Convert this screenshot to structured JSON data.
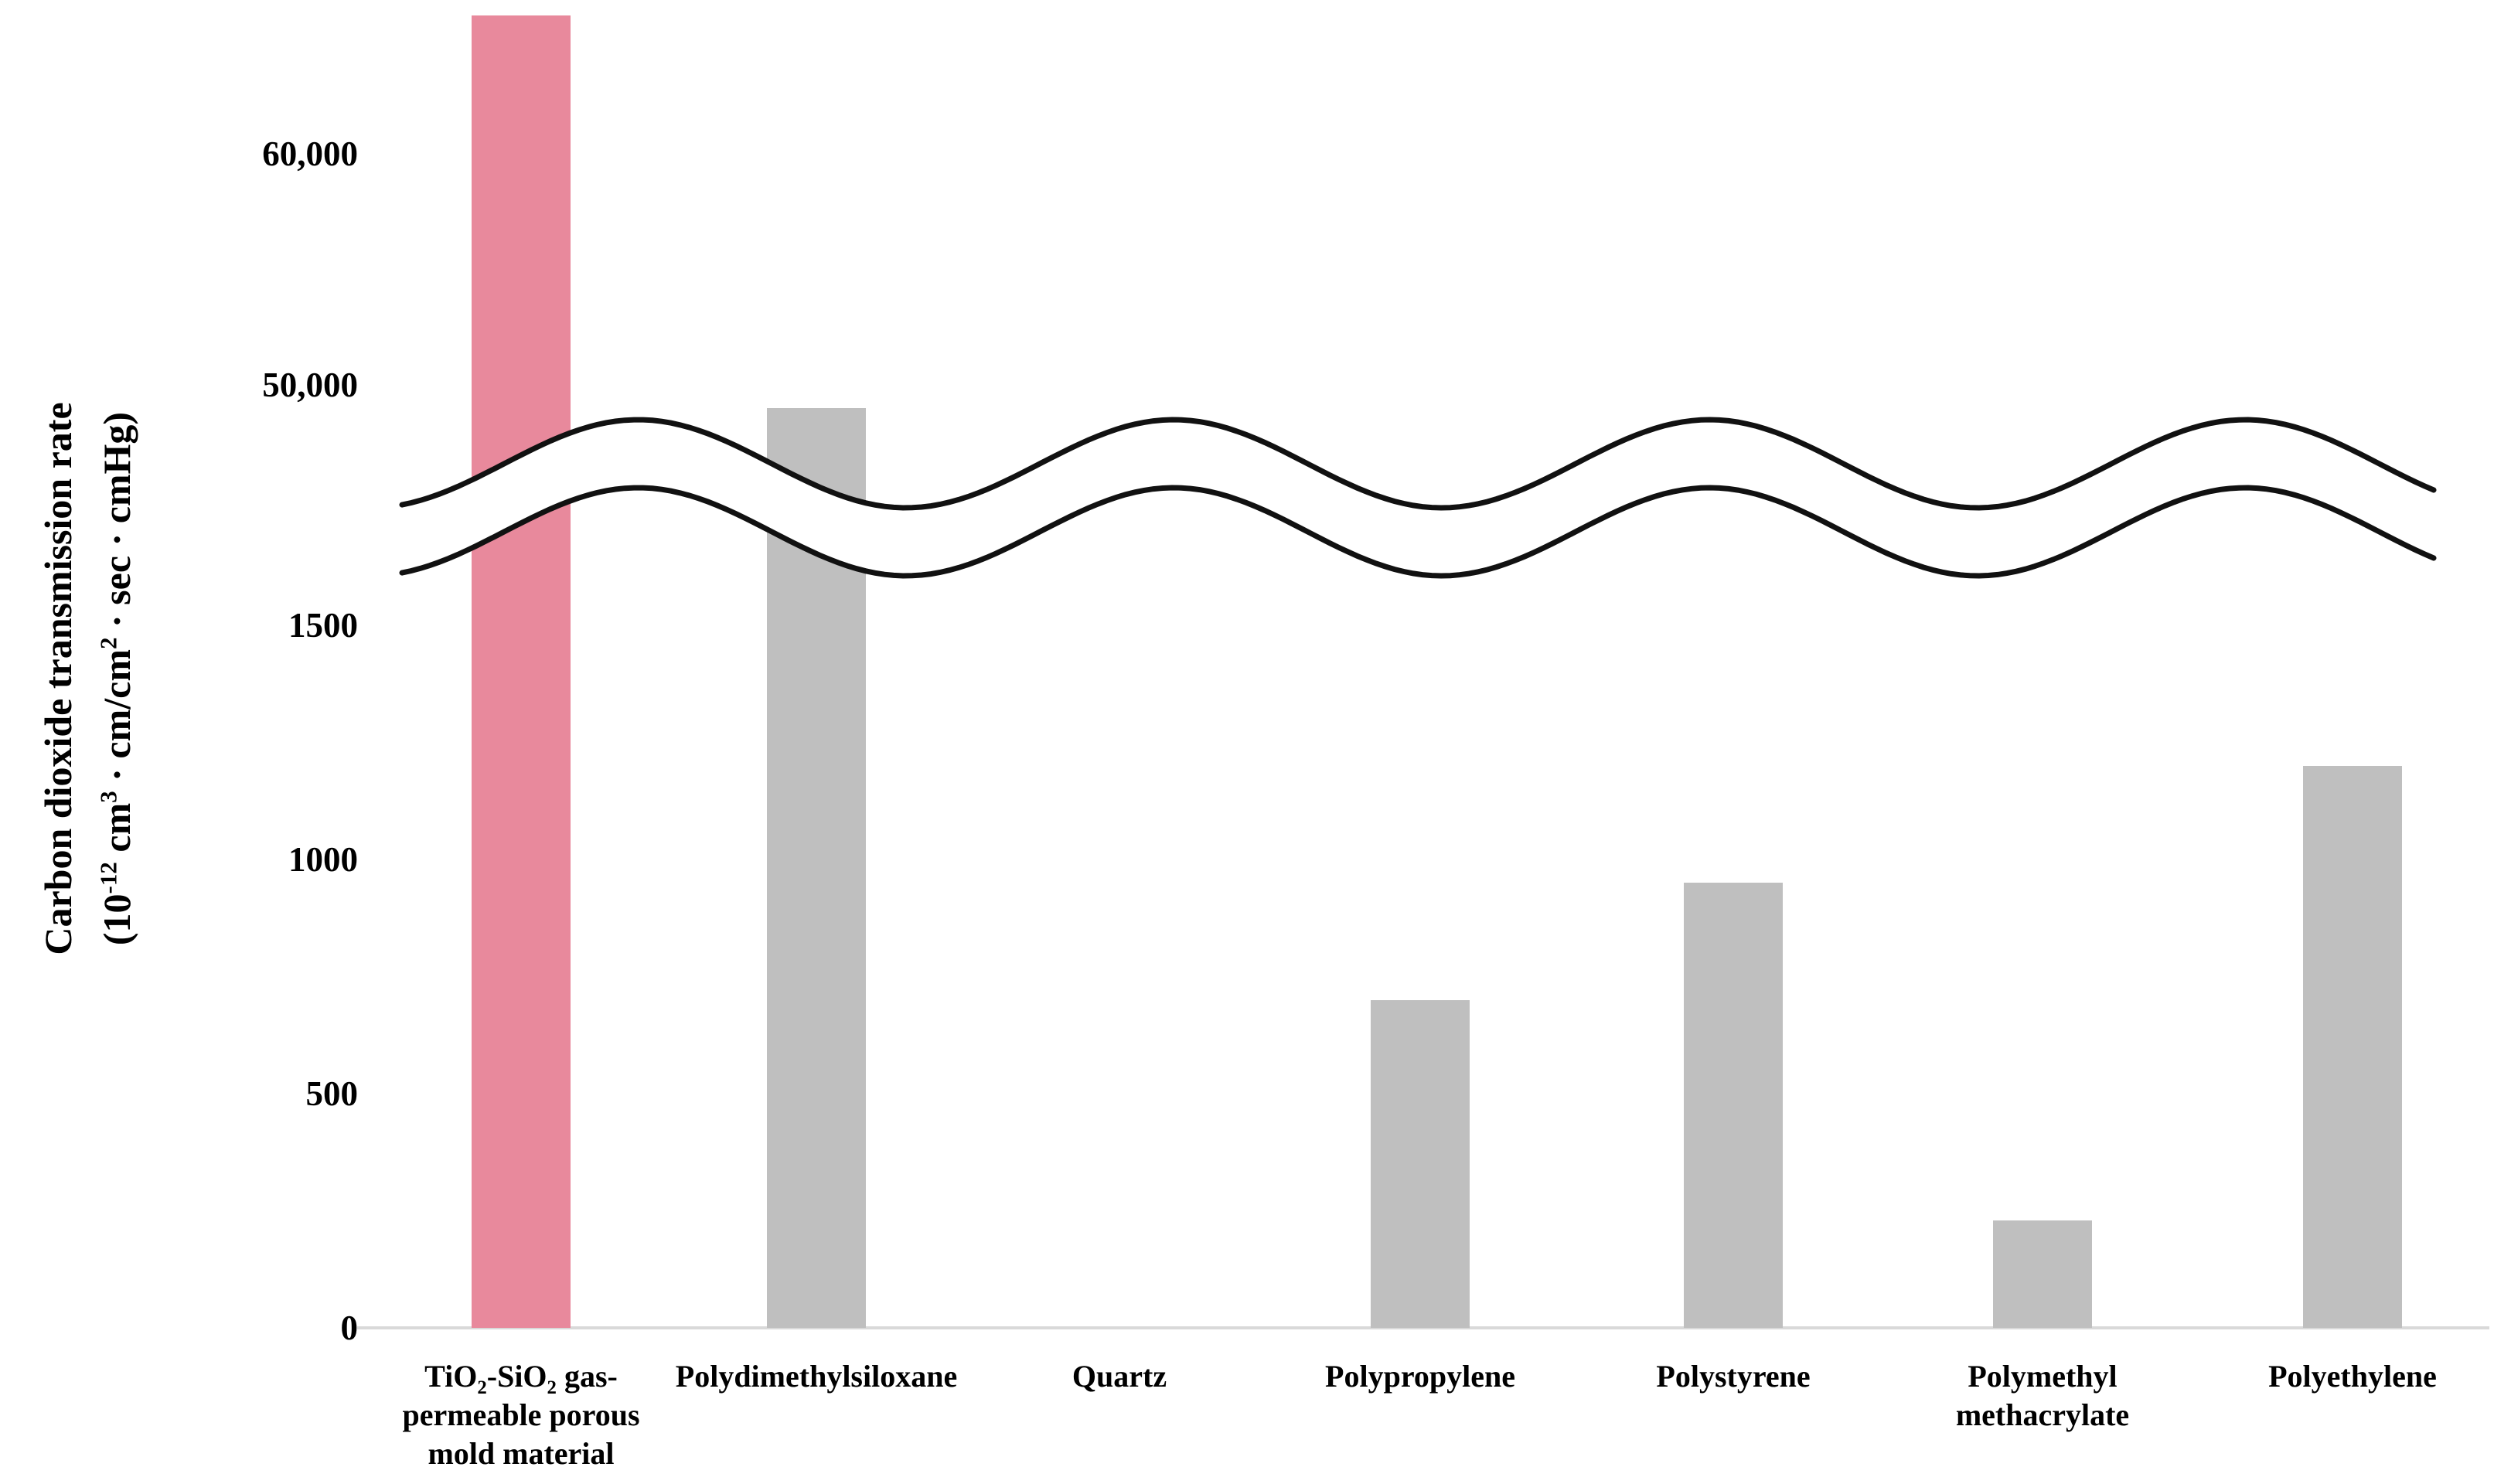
{
  "figure": {
    "background_color": "#ffffff",
    "accent_bar_color": "#e8899c",
    "default_bar_color": "#bfbfbf",
    "baseline_color": "#d9d9d9",
    "break_line_color": "#111111"
  },
  "y_axis": {
    "title_line1": "Carbon dioxide transmission rate",
    "title_line2_rich": "(10^{-12} cm^{3} · cm/cm^{2} · sec · cmHg)"
  },
  "chart_data": {
    "type": "bar",
    "title": "",
    "xlabel": "",
    "ylabel": "Carbon dioxide transmission rate (10⁻¹² cm³ · cm/cm² · sec · cmHg)",
    "grid": false,
    "legend": false,
    "axis_break": {
      "lower_range": [
        0,
        1500
      ],
      "upper_range": [
        50000,
        60000
      ],
      "style": "double wavy band between 1500 and 50,000 tick regions"
    },
    "y_ticks": [
      {
        "value": 60000,
        "label": "60,000"
      },
      {
        "value": 50000,
        "label": "50,000"
      },
      {
        "value": 1500,
        "label": "1500"
      },
      {
        "value": 1000,
        "label": "1000"
      },
      {
        "value": 500,
        "label": "500"
      },
      {
        "value": 0,
        "label": "0"
      }
    ],
    "categories": [
      "TiO2-SiO2 gas-permeable porous mold material",
      "Polydimethylsiloxane",
      "Quartz",
      "Polypropylene",
      "Polystyrene",
      "Polymethyl methacrylate",
      "Polyethylene"
    ],
    "category_lines_rich": [
      [
        "TiO_{2}-SiO_{2} gas-",
        "permeable porous",
        "mold material"
      ],
      [
        "Polydimethylsiloxane"
      ],
      [
        "Quartz"
      ],
      [
        "Polypropylene"
      ],
      [
        "Polystyrene"
      ],
      [
        "Polymethyl",
        "methacrylate"
      ],
      [
        "Polyethylene"
      ]
    ],
    "values": [
      66000,
      49000,
      0,
      700,
      950,
      230,
      1200
    ],
    "bar_colors": [
      "#e8899c",
      "#bfbfbf",
      "#bfbfbf",
      "#bfbfbf",
      "#bfbfbf",
      "#bfbfbf",
      "#bfbfbf"
    ],
    "notes": [
      "Values estimated from axis ticks; no data labels are printed on the chart.",
      "TiO2-SiO2 bar extends above the 60,000 tick (top of bar near ~66,000, visually off-scale).",
      "Quartz has no visible bar (value ~0).",
      "All bars cross behind a white wavy axis-break band except those below 1500."
    ]
  }
}
